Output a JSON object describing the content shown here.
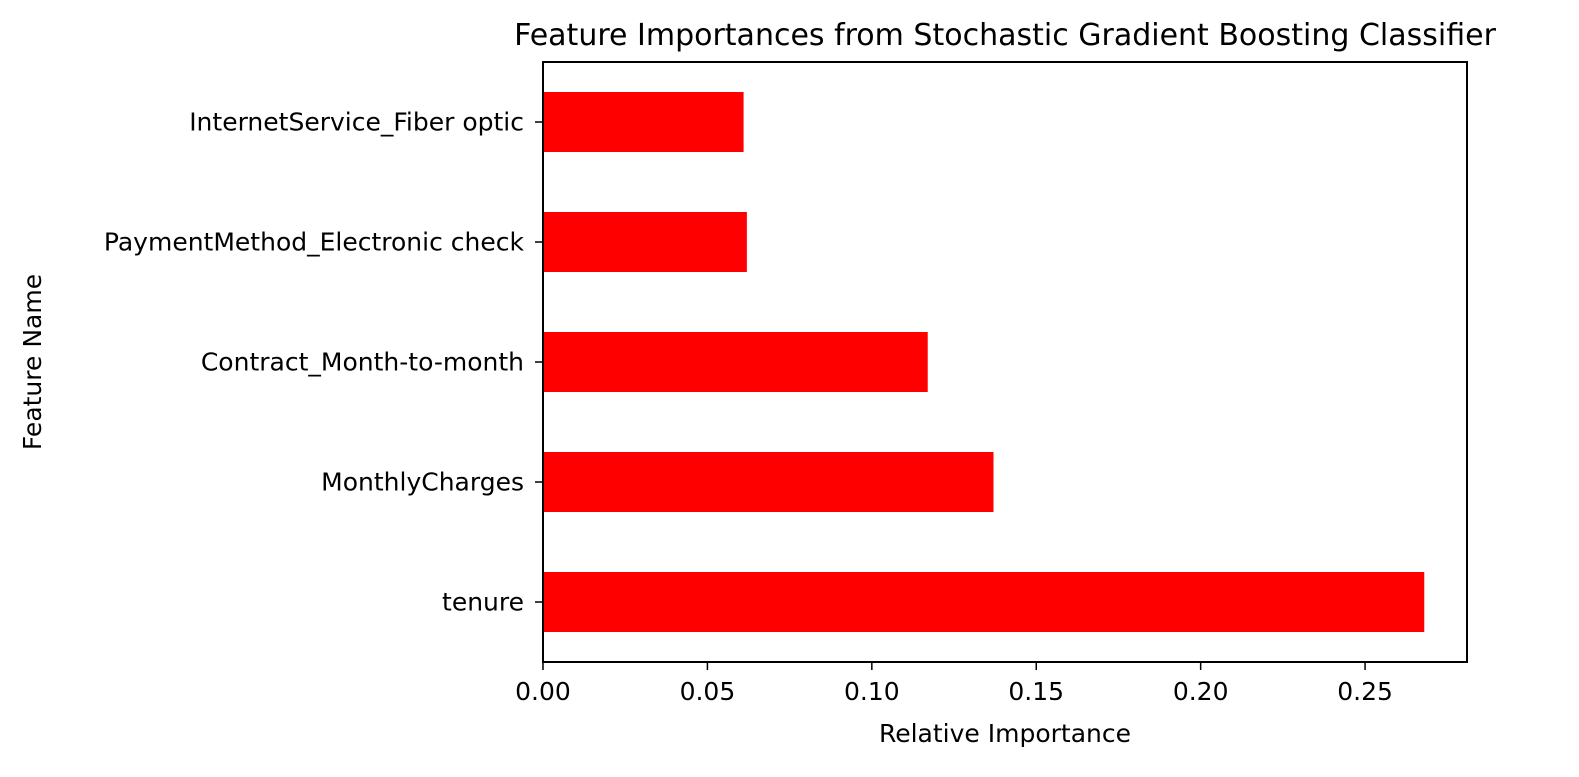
{
  "chart_data": {
    "type": "bar",
    "orientation": "horizontal",
    "title": "Feature Importances from Stochastic Gradient Boosting Classifier",
    "xlabel": "Relative Importance",
    "ylabel": "Feature Name",
    "categories": [
      "tenure",
      "MonthlyCharges",
      "Contract_Month-to-month",
      "PaymentMethod_Electronic check",
      "InternetService_Fiber optic"
    ],
    "values": [
      0.268,
      0.137,
      0.117,
      0.062,
      0.061
    ],
    "xlim": [
      0.0,
      0.281
    ],
    "xticks": [
      0.0,
      0.05,
      0.1,
      0.15,
      0.2,
      0.25
    ],
    "xtick_labels": [
      "0.00",
      "0.05",
      "0.10",
      "0.15",
      "0.20",
      "0.25"
    ],
    "bar_color": "#ff0000",
    "grid": false,
    "legend": false
  }
}
